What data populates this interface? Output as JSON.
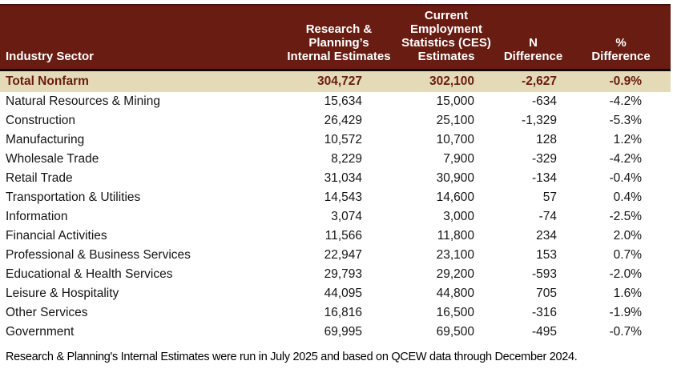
{
  "colors": {
    "header_bg": "#681c12",
    "header_top_border": "#45120a",
    "header_text": "#ffffff",
    "separator": "#0e0905",
    "total_row_bg": "#e5dab7",
    "total_row_text": "#681c12",
    "body_text": "#151515",
    "page_bg": "#ffffff"
  },
  "table": {
    "columns": [
      {
        "id": "sector",
        "label": "Industry Sector"
      },
      {
        "id": "internal",
        "label": "Research &\nPlanning’s\nInternal Estimates"
      },
      {
        "id": "ces",
        "label": "Current\nEmployment\nStatistics (CES)\nEstimates"
      },
      {
        "id": "n_diff",
        "label": "N\nDifference"
      },
      {
        "id": "pct_diff",
        "label": "%\nDifference"
      }
    ],
    "total_row": {
      "sector": "Total Nonfarm",
      "internal": "304,727",
      "ces": "302,100",
      "n_diff": "-2,627",
      "pct_diff": "-0.9%"
    },
    "rows": [
      {
        "sector": "Natural Resources & Mining",
        "internal": "15,634",
        "ces": "15,000",
        "n_diff": "-634",
        "pct_diff": "-4.2%"
      },
      {
        "sector": "Construction",
        "internal": "26,429",
        "ces": "25,100",
        "n_diff": "-1,329",
        "pct_diff": "-5.3%"
      },
      {
        "sector": "Manufacturing",
        "internal": "10,572",
        "ces": "10,700",
        "n_diff": "128",
        "pct_diff": "1.2%"
      },
      {
        "sector": "Wholesale Trade",
        "internal": "8,229",
        "ces": "7,900",
        "n_diff": "-329",
        "pct_diff": "-4.2%"
      },
      {
        "sector": "Retail Trade",
        "internal": "31,034",
        "ces": "30,900",
        "n_diff": "-134",
        "pct_diff": "-0.4%"
      },
      {
        "sector": "Transportation & Utilities",
        "internal": "14,543",
        "ces": "14,600",
        "n_diff": "57",
        "pct_diff": "0.4%"
      },
      {
        "sector": "Information",
        "internal": "3,074",
        "ces": "3,000",
        "n_diff": "-74",
        "pct_diff": "-2.5%"
      },
      {
        "sector": "Financial Activities",
        "internal": "11,566",
        "ces": "11,800",
        "n_diff": "234",
        "pct_diff": "2.0%"
      },
      {
        "sector": "Professional & Business Services",
        "internal": "22,947",
        "ces": "23,100",
        "n_diff": "153",
        "pct_diff": "0.7%"
      },
      {
        "sector": "Educational & Health Services",
        "internal": "29,793",
        "ces": "29,200",
        "n_diff": "-593",
        "pct_diff": "-2.0%"
      },
      {
        "sector": "Leisure & Hospitality",
        "internal": "44,095",
        "ces": "44,800",
        "n_diff": "705",
        "pct_diff": "1.6%"
      },
      {
        "sector": "Other Services",
        "internal": "16,816",
        "ces": "16,500",
        "n_diff": "-316",
        "pct_diff": "-1.9%"
      },
      {
        "sector": "Government",
        "internal": "69,995",
        "ces": "69,500",
        "n_diff": "-495",
        "pct_diff": "-0.7%"
      }
    ]
  },
  "footnote": "Research & Planning's Internal Estimates were run in July 2025 and based on QCEW data through December 2024."
}
